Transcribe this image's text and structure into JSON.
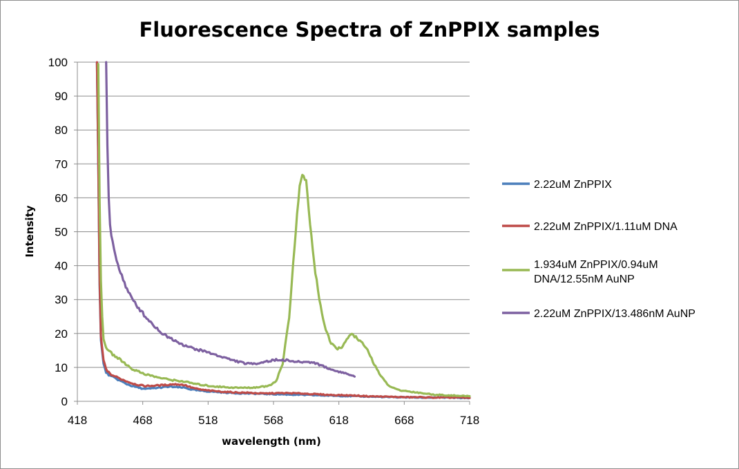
{
  "chart_data": {
    "type": "line",
    "title": "Fluorescence Spectra of ZnPPIX samples",
    "xlabel": "wavelength (nm)",
    "ylabel": "Intensity",
    "xlim": [
      418,
      718
    ],
    "ylim": [
      0,
      100
    ],
    "xticks": [
      418,
      468,
      518,
      568,
      618,
      668,
      718
    ],
    "yticks": [
      0,
      10,
      20,
      30,
      40,
      50,
      60,
      70,
      80,
      90,
      100
    ],
    "grid": "horizontal",
    "legend_position": "right",
    "series": [
      {
        "name": "2.22uM ZnPPIX",
        "color": "#4a7ebb",
        "x": [
          433,
          434,
          435,
          436,
          438,
          440,
          443,
          446,
          450,
          455,
          460,
          465,
          470,
          475,
          480,
          485,
          490,
          495,
          500,
          505,
          510,
          515,
          520,
          530,
          540,
          550,
          560,
          570,
          580,
          590,
          600,
          610,
          620,
          630,
          640,
          650,
          660,
          670,
          680,
          690,
          700,
          710,
          718
        ],
        "y": [
          100,
          70,
          35,
          18,
          11,
          8.5,
          7.5,
          7,
          6.2,
          5.2,
          4.5,
          4,
          3.6,
          3.8,
          4,
          4.2,
          4.3,
          4.1,
          4,
          3.5,
          3.2,
          3,
          2.9,
          2.6,
          2.4,
          2.3,
          2.2,
          2.1,
          2,
          1.9,
          1.8,
          1.7,
          1.6,
          1.5,
          1.4,
          1.3,
          1.2,
          1.2,
          1.1,
          1.1,
          1.1,
          1.0,
          1.0
        ]
      },
      {
        "name": "2.22uM ZnPPIX/1.11uM DNA",
        "color": "#be4b48",
        "x": [
          433,
          434,
          435,
          436,
          438,
          440,
          443,
          446,
          450,
          455,
          460,
          465,
          470,
          475,
          480,
          485,
          490,
          495,
          500,
          505,
          510,
          515,
          520,
          530,
          540,
          550,
          560,
          570,
          580,
          590,
          600,
          610,
          620,
          630,
          640,
          650,
          660,
          670,
          680,
          690,
          700,
          710,
          718
        ],
        "y": [
          100,
          72,
          36,
          19,
          12,
          9.5,
          8,
          7.5,
          6.8,
          6,
          5.3,
          4.8,
          4.5,
          4.6,
          4.7,
          4.8,
          5,
          5,
          4.8,
          4.1,
          3.6,
          3.3,
          3.1,
          2.8,
          2.6,
          2.5,
          2.3,
          2.4,
          2.4,
          2.3,
          2.1,
          1.9,
          1.8,
          1.7,
          1.5,
          1.4,
          1.3,
          1.2,
          1.2,
          1.1,
          1.1,
          1.1,
          1.0
        ]
      },
      {
        "name": "1.934uM ZnPPIX/0.94uM DNA/12.55nM AuNP",
        "color": "#98b954",
        "x": [
          434,
          435,
          436,
          437,
          438,
          440,
          443,
          446,
          450,
          455,
          460,
          470,
          480,
          490,
          500,
          510,
          520,
          530,
          540,
          550,
          560,
          565,
          570,
          575,
          580,
          583,
          586,
          588,
          590,
          593,
          596,
          600,
          604,
          608,
          612,
          616,
          620,
          624,
          628,
          632,
          636,
          640,
          645,
          650,
          655,
          660,
          665,
          670,
          680,
          690,
          700,
          710,
          718
        ],
        "y": [
          100,
          60,
          35,
          25,
          18,
          16,
          14.5,
          13.5,
          12.5,
          11,
          9.5,
          8,
          7,
          6.3,
          5.8,
          5,
          4.5,
          4.2,
          4,
          4,
          4.3,
          4.7,
          6,
          11,
          25,
          40,
          55,
          63,
          67,
          65,
          52,
          38,
          28,
          21,
          17,
          15.5,
          16,
          18,
          20,
          18.5,
          17,
          15,
          11,
          7.5,
          5,
          3.8,
          3.2,
          3,
          2.5,
          2,
          1.8,
          1.6,
          1.5
        ]
      },
      {
        "name": "2.22uM ZnPPIX/13.486nM AuNP",
        "color": "#7d60a0",
        "x": [
          440,
          441,
          442,
          443,
          444,
          445,
          446,
          448,
          450,
          453,
          456,
          460,
          465,
          470,
          475,
          480,
          485,
          490,
          495,
          500,
          505,
          510,
          515,
          520,
          525,
          530,
          535,
          540,
          545,
          550,
          555,
          560,
          565,
          570,
          575,
          580,
          585,
          590,
          595,
          600,
          605,
          610,
          615,
          620,
          625,
          630
        ],
        "y": [
          100,
          75,
          60,
          52,
          49,
          47,
          45,
          42,
          39,
          36,
          33,
          30,
          27.5,
          25,
          23,
          21,
          19.5,
          18.5,
          17.5,
          16.5,
          15.8,
          15.2,
          14.8,
          14.2,
          13.5,
          13,
          12.3,
          11.8,
          11.3,
          11,
          11.2,
          11.6,
          11.9,
          12.2,
          12.2,
          12,
          11.6,
          11.6,
          11.6,
          11.3,
          10.5,
          9.7,
          9,
          8.6,
          8,
          7.3
        ]
      }
    ]
  }
}
